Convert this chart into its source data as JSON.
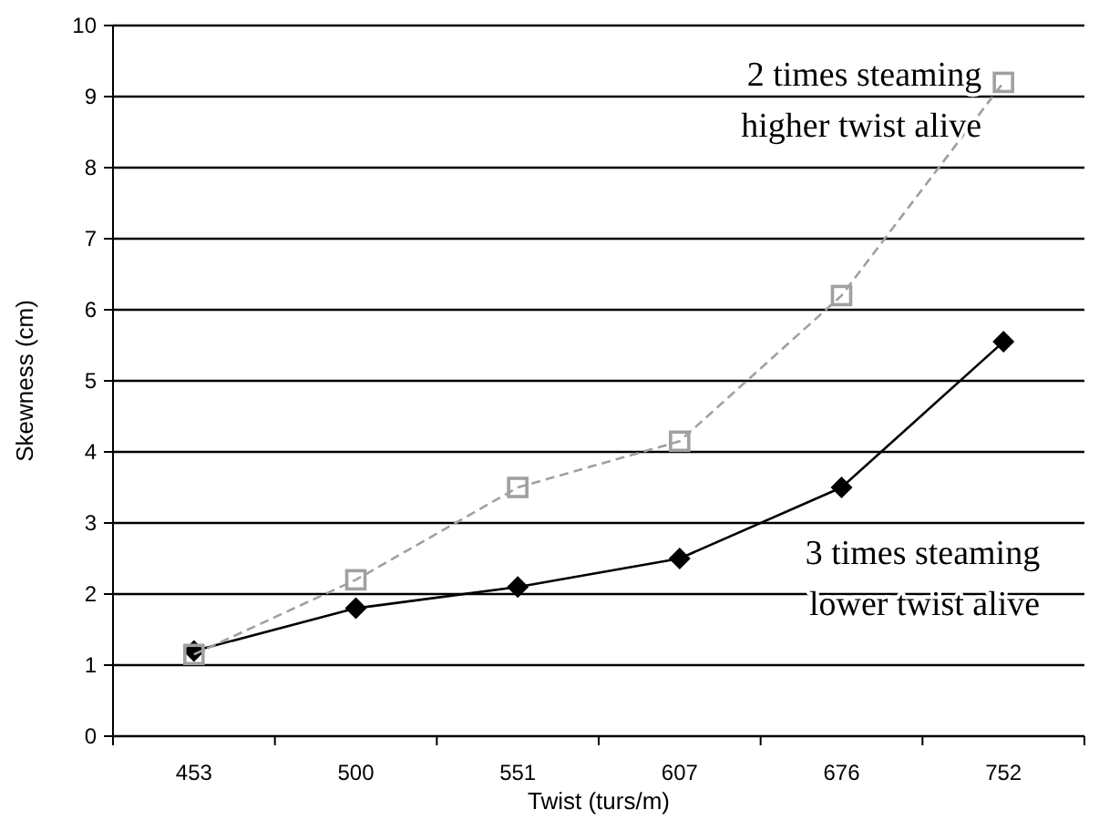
{
  "chart_data": {
    "type": "line",
    "xlabel": "Twist (turs/m)",
    "ylabel": "Skewness (cm)",
    "categories": [
      "453",
      "500",
      "551",
      "607",
      "676",
      "752"
    ],
    "series": [
      {
        "name": "2 times steaming higher twist alive",
        "color": "#a0a0a0",
        "values": [
          1.15,
          2.2,
          3.5,
          4.15,
          6.2,
          9.2
        ],
        "marker": "square",
        "line_style": "dashed"
      },
      {
        "name": "3 times steaming lower twist alive",
        "color": "#000000",
        "values": [
          1.2,
          1.8,
          2.1,
          2.5,
          3.5,
          5.55
        ],
        "marker": "diamond",
        "line_style": "solid"
      }
    ],
    "ylim": [
      0,
      10
    ],
    "yticks": [
      0,
      1,
      2,
      3,
      4,
      5,
      6,
      7,
      8,
      9,
      10
    ],
    "grid": "y"
  }
}
